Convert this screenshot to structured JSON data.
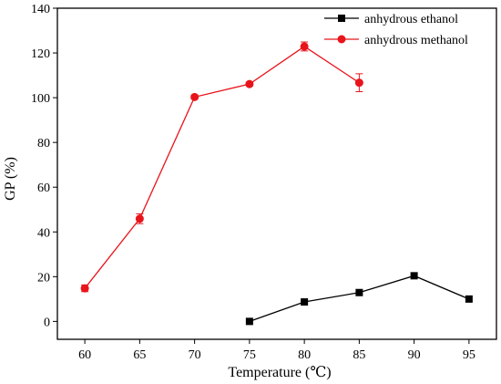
{
  "chart_data": {
    "type": "line",
    "title": "",
    "xlabel": "Temperature (℃)",
    "ylabel": "GP (%)",
    "xlim": [
      57.5,
      97.5
    ],
    "ylim": [
      -8,
      140
    ],
    "xticks": [
      60,
      65,
      70,
      75,
      80,
      85,
      90,
      95
    ],
    "yticks": [
      0,
      20,
      40,
      60,
      80,
      100,
      120,
      140
    ],
    "grid": false,
    "legend_position": "top-right",
    "series": [
      {
        "name": "anhydrous ethanol",
        "color": "#000000",
        "marker": "square",
        "x": [
          75,
          80,
          85,
          90,
          95
        ],
        "y": [
          0,
          8.7,
          12.9,
          20.4,
          10
        ]
      },
      {
        "name": "anhydrous methanol",
        "color": "#e8141b",
        "marker": "circle",
        "x": [
          60,
          65,
          70,
          75,
          80,
          85
        ],
        "y": [
          14.8,
          45.9,
          100.3,
          106.1,
          122.9,
          106.7
        ],
        "error": [
          1.5,
          2.2,
          0.9,
          0.8,
          2.0,
          4.0
        ]
      }
    ]
  }
}
